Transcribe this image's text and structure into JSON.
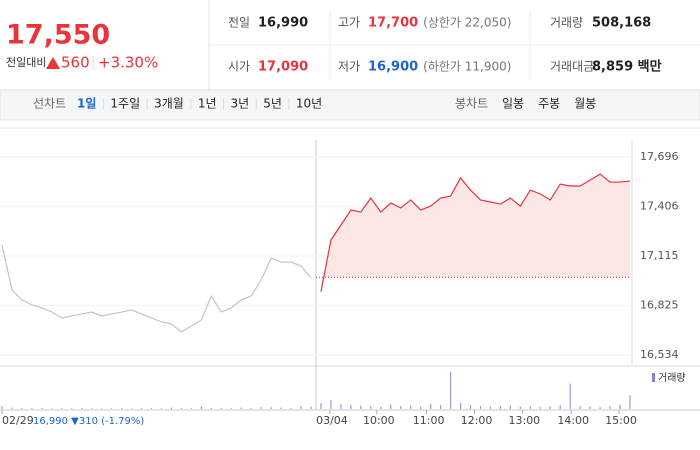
{
  "header": {
    "price": "17,550",
    "change_label": "전일대비",
    "change": "560",
    "change_pct": "+3.30%",
    "stats": [
      [
        {
          "label": "전일",
          "value": "16,990"
        },
        {
          "label": "고가",
          "value": "17,700",
          "sub": "(상한가 22,050)"
        },
        {
          "label": "거래량",
          "value": "508,168"
        }
      ],
      [
        {
          "label": "시가",
          "value": "17,090"
        },
        {
          "label": "저가",
          "value": "16,900",
          "sub": "(하한가 11,900)"
        },
        {
          "label": "거래대금",
          "value": "8,859 백만"
        }
      ]
    ]
  },
  "tabs": {
    "line_label": "선차트",
    "periods": [
      "1일",
      "1주일",
      "3개월",
      "1년",
      "3년",
      "5년",
      "10년"
    ],
    "active_period_index": 0,
    "candle_label": "봉차트",
    "candles": [
      "일봉",
      "주봉",
      "월봉"
    ]
  },
  "chart_data": {
    "type": "line",
    "xlim": [
      0,
      63
    ],
    "ylim": [
      16475,
      17796
    ],
    "yticks": [
      {
        "value": 17696,
        "label": "17,696"
      },
      {
        "value": 17406,
        "label": "17,406"
      },
      {
        "value": 17115,
        "label": "17,115"
      },
      {
        "value": 16825,
        "label": "16,825"
      },
      {
        "value": 16534,
        "label": "16,534"
      }
    ],
    "xticks": [
      {
        "value": 0,
        "label": "02/29"
      },
      {
        "value": 32.9,
        "label": "03/04"
      },
      {
        "value": 37.6,
        "label": "10:00"
      },
      {
        "value": 42.6,
        "label": "11:00"
      },
      {
        "value": 47.4,
        "label": "12:00"
      },
      {
        "value": 52.2,
        "label": "13:00"
      },
      {
        "value": 57.1,
        "label": "14:00"
      },
      {
        "value": 61.9,
        "label": "15:00"
      }
    ],
    "annotation": "16,990 ▼310 (-1.79%)",
    "baseline": 16990,
    "grid": true,
    "series": [
      {
        "color": "#c4c4c4",
        "values": [
          17180,
          16916,
          16857,
          16828,
          16810,
          16786,
          16751,
          16763,
          16775,
          16786,
          16763,
          16775,
          16786,
          16798,
          16775,
          16751,
          16728,
          16716,
          16669,
          16704,
          16740,
          16880,
          16786,
          16810,
          16857,
          16880,
          16974,
          17103,
          17079,
          17079,
          17056,
          16986,
          null,
          null,
          null,
          null,
          null,
          null,
          null,
          null,
          null,
          null,
          null,
          null,
          null,
          null,
          null,
          null,
          null,
          null,
          null,
          null,
          null,
          null,
          null,
          null,
          null,
          null,
          null,
          null,
          null,
          null,
          null,
          null
        ]
      },
      {
        "color": "#e8343a",
        "fill": "#fde6e6",
        "values": [
          null,
          null,
          null,
          null,
          null,
          null,
          null,
          null,
          null,
          null,
          null,
          null,
          null,
          null,
          null,
          null,
          null,
          null,
          null,
          null,
          null,
          null,
          null,
          null,
          null,
          null,
          null,
          null,
          null,
          null,
          null,
          null,
          16905,
          17209,
          17297,
          17385,
          17373,
          17455,
          17373,
          17426,
          17397,
          17444,
          17385,
          17408,
          17455,
          17467,
          17573,
          17502,
          17444,
          17432,
          17420,
          17455,
          17408,
          17502,
          17479,
          17444,
          17537,
          17526,
          17526,
          17561,
          17596,
          17549,
          17549,
          17555
        ]
      }
    ],
    "volume": {
      "label": "거래량",
      "color": "#9c95d6",
      "ylim": [
        0,
        40000
      ],
      "values": [
        3000,
        1500,
        1200,
        800,
        1000,
        600,
        900,
        700,
        1200,
        800,
        500,
        700,
        900,
        600,
        800,
        1000,
        700,
        1500,
        900,
        800,
        2500,
        1200,
        1000,
        800,
        1500,
        1200,
        2000,
        1800,
        1500,
        1200,
        3000,
        2500,
        6000,
        9000,
        5000,
        4000,
        3500,
        3000,
        2500,
        4500,
        3000,
        3500,
        2500,
        5000,
        4000,
        38000,
        6000,
        4000,
        3000,
        2500,
        3000,
        3500,
        2500,
        3000,
        2000,
        2500,
        4000,
        26000,
        3000,
        2500,
        2000,
        3000,
        4000,
        14000
      ]
    }
  }
}
